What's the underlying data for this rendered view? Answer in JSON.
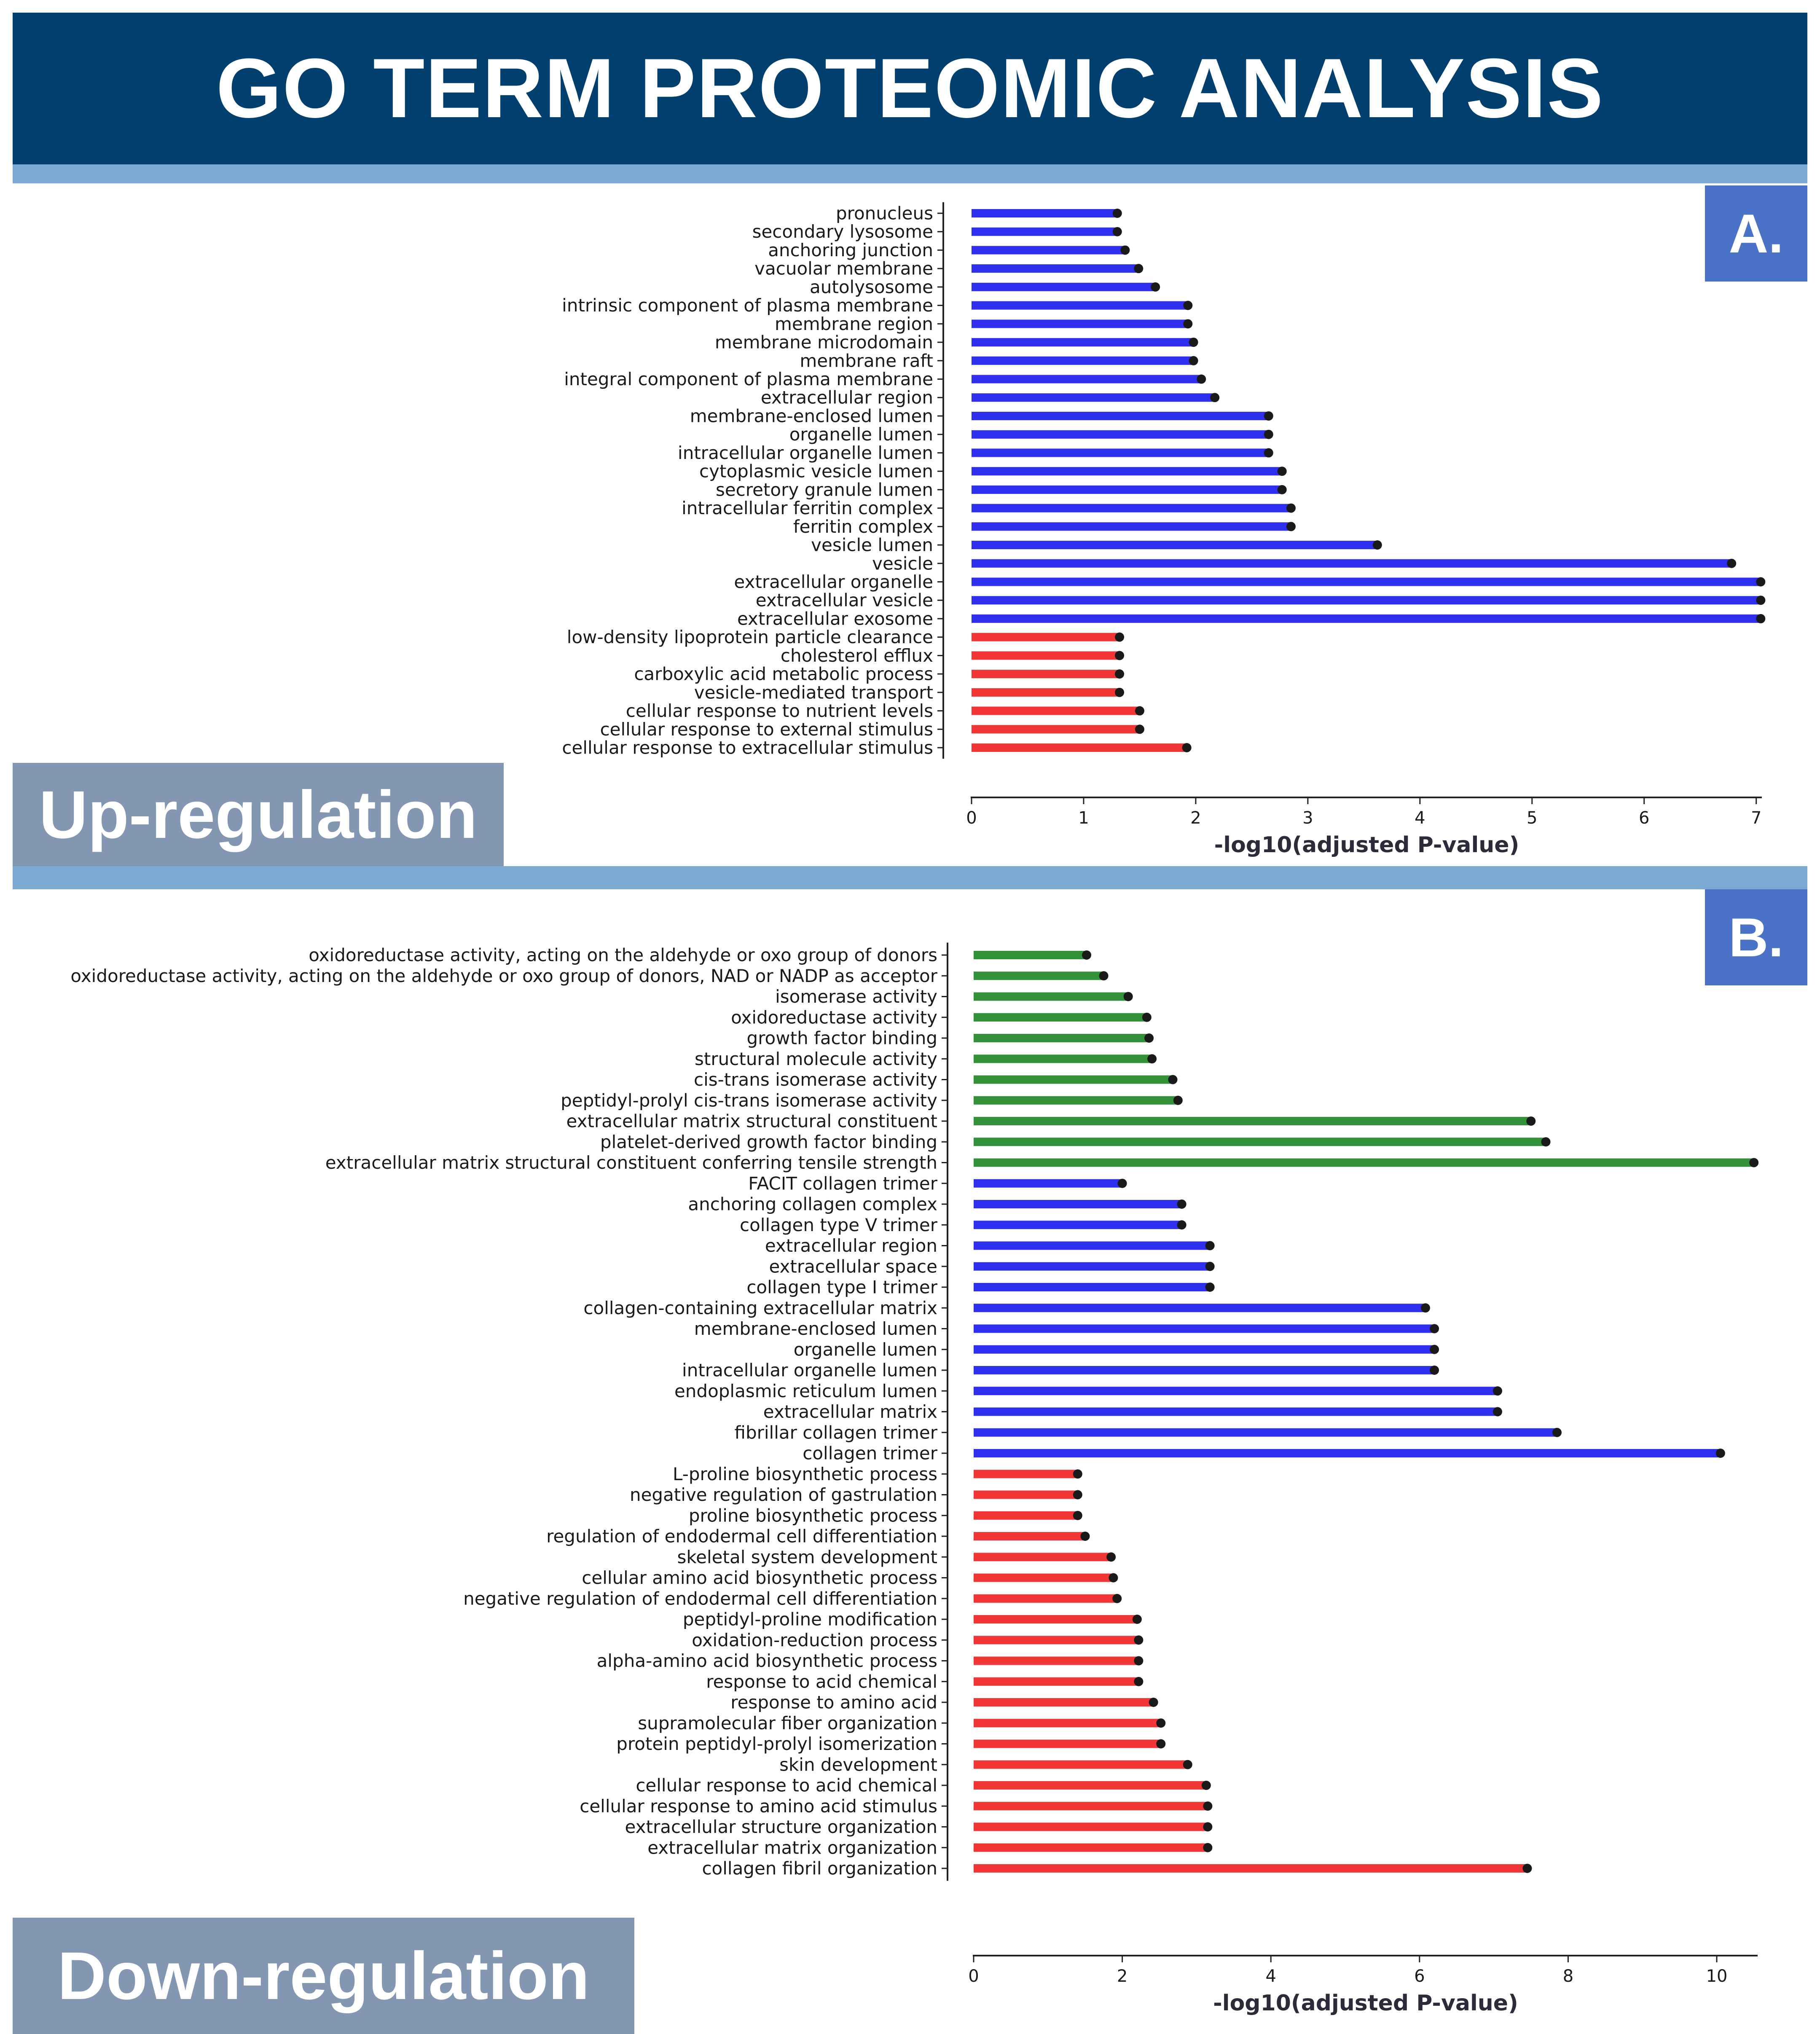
{
  "header": {
    "title": "GO TERM PROTEOMIC ANALYSIS"
  },
  "panels": {
    "a": {
      "badge": "A.",
      "region_label": "Up-regulation"
    },
    "b": {
      "badge": "B.",
      "region_label": "Down-regulation"
    }
  },
  "colors": {
    "title_bg": "#003f6e",
    "band": "#7aa9d2",
    "badge": "#4a72c6",
    "region_label_bg": "#8497b2",
    "cellular_component": "#2f2fef",
    "biological_process": "#f23535",
    "molecular_function": "#33913a",
    "marker": "#1a1a1a"
  },
  "chart_data": [
    {
      "type": "bar",
      "orientation": "horizontal-lollipop",
      "xlabel": "-log10(adjusted P-value)",
      "xlim": [
        0,
        7.05
      ],
      "xticks": [
        0,
        1,
        2,
        3,
        4,
        5,
        6,
        7
      ],
      "categories": [
        "pronucleus",
        "secondary lysosome",
        "anchoring junction",
        "vacuolar membrane",
        "autolysosome",
        "intrinsic component of plasma membrane",
        "membrane region",
        "membrane microdomain",
        "membrane raft",
        "integral component of plasma membrane",
        "extracellular region",
        "membrane-enclosed lumen",
        "organelle lumen",
        "intracellular organelle lumen",
        "cytoplasmic vesicle lumen",
        "secretory granule lumen",
        "intracellular ferritin complex",
        "ferritin complex",
        "vesicle lumen",
        "vesicle",
        "extracellular organelle",
        "extracellular vesicle",
        "extracellular exosome",
        "low-density lipoprotein particle clearance",
        "cholesterol efflux",
        "carboxylic acid metabolic process",
        "vesicle-mediated transport",
        "cellular response to nutrient levels",
        "cellular response to external stimulus",
        "cellular response to extracellular stimulus"
      ],
      "values": [
        1.3,
        1.3,
        1.37,
        1.49,
        1.64,
        1.93,
        1.93,
        1.98,
        1.98,
        2.05,
        2.17,
        2.65,
        2.65,
        2.65,
        2.77,
        2.77,
        2.85,
        2.85,
        3.62,
        6.78,
        7.04,
        7.04,
        7.04,
        1.32,
        1.32,
        1.32,
        1.32,
        1.5,
        1.5,
        1.92
      ],
      "groups": [
        "cc",
        "cc",
        "cc",
        "cc",
        "cc",
        "cc",
        "cc",
        "cc",
        "cc",
        "cc",
        "cc",
        "cc",
        "cc",
        "cc",
        "cc",
        "cc",
        "cc",
        "cc",
        "cc",
        "cc",
        "cc",
        "cc",
        "cc",
        "bp",
        "bp",
        "bp",
        "bp",
        "bp",
        "bp",
        "bp"
      ]
    },
    {
      "type": "bar",
      "orientation": "horizontal-lollipop",
      "xlabel": "-log10(adjusted P-value)",
      "xlim": [
        0,
        10.55
      ],
      "xticks": [
        0,
        2,
        4,
        6,
        8,
        10
      ],
      "categories": [
        "oxidoreductase activity, acting on the aldehyde or oxo group of donors",
        "oxidoreductase activity, acting on the aldehyde or oxo group of donors, NAD or NADP as acceptor",
        "isomerase activity",
        "oxidoreductase activity",
        "growth factor binding",
        "structural molecule activity",
        "cis-trans isomerase activity",
        "peptidyl-prolyl cis-trans isomerase activity",
        "extracellular matrix structural constituent",
        "platelet-derived growth factor binding",
        "extracellular matrix structural constituent conferring tensile strength",
        "FACIT collagen trimer",
        "anchoring collagen complex",
        "collagen type V trimer",
        "extracellular region",
        "extracellular space",
        "collagen type I trimer",
        "collagen-containing extracellular matrix",
        "membrane-enclosed lumen",
        "organelle lumen",
        "intracellular organelle lumen",
        "endoplasmic reticulum lumen",
        "extracellular matrix",
        "fibrillar collagen trimer",
        "collagen trimer",
        "L-proline biosynthetic process",
        "negative regulation of gastrulation",
        "proline biosynthetic process",
        "regulation of endodermal cell differentiation",
        "skeletal system development",
        "cellular amino acid biosynthetic process",
        "negative regulation of endodermal cell differentiation",
        "peptidyl-proline modification",
        "oxidation-reduction process",
        "alpha-amino acid biosynthetic process",
        "response to acid chemical",
        "response to amino acid",
        "supramolecular fiber organization",
        "protein peptidyl-prolyl isomerization",
        "skin development",
        "cellular response to acid chemical",
        "cellular response to amino acid stimulus",
        "extracellular structure organization",
        "extracellular matrix organization",
        "collagen fibril organization"
      ],
      "values": [
        1.52,
        1.75,
        2.08,
        2.33,
        2.36,
        2.4,
        2.68,
        2.75,
        7.5,
        7.7,
        10.5,
        2.0,
        2.8,
        2.8,
        3.18,
        3.18,
        3.18,
        6.08,
        6.2,
        6.2,
        6.2,
        7.05,
        7.05,
        7.85,
        10.05,
        1.4,
        1.4,
        1.4,
        1.5,
        1.85,
        1.88,
        1.93,
        2.2,
        2.22,
        2.22,
        2.22,
        2.42,
        2.52,
        2.52,
        2.88,
        3.13,
        3.15,
        3.15,
        3.15,
        7.45
      ],
      "groups": [
        "mf",
        "mf",
        "mf",
        "mf",
        "mf",
        "mf",
        "mf",
        "mf",
        "mf",
        "mf",
        "mf",
        "cc",
        "cc",
        "cc",
        "cc",
        "cc",
        "cc",
        "cc",
        "cc",
        "cc",
        "cc",
        "cc",
        "cc",
        "cc",
        "cc",
        "bp",
        "bp",
        "bp",
        "bp",
        "bp",
        "bp",
        "bp",
        "bp",
        "bp",
        "bp",
        "bp",
        "bp",
        "bp",
        "bp",
        "bp",
        "bp",
        "bp",
        "bp",
        "bp",
        "bp"
      ]
    }
  ]
}
